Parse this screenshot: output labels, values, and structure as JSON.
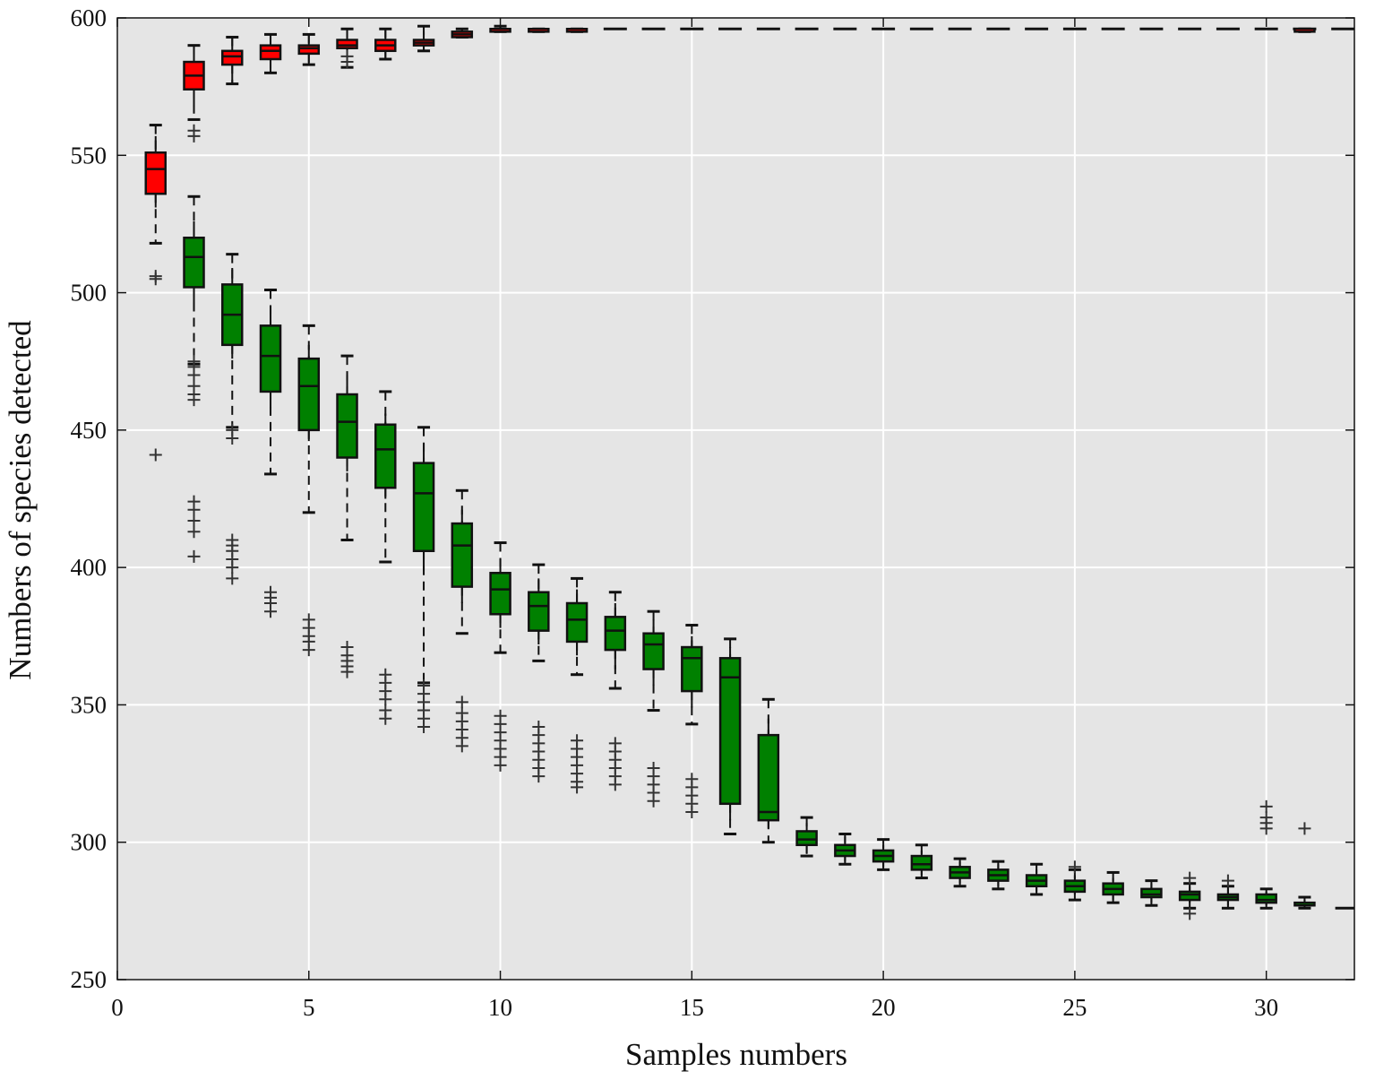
{
  "chart_data": {
    "type": "box",
    "title": "",
    "xlabel": "Samples numbers",
    "ylabel": "Numbers of species detected",
    "xlim": [
      0,
      32.3
    ],
    "ylim": [
      250,
      600
    ],
    "xticks": [
      0,
      5,
      10,
      15,
      20,
      25,
      30
    ],
    "yticks": [
      250,
      300,
      350,
      400,
      450,
      500,
      550,
      600
    ],
    "grid": true,
    "legend": "none",
    "colors": {
      "background": "#e5e5e5",
      "grid": "#ffffff",
      "upper": "#ff0000",
      "lower": "#008000",
      "stroke": "#111111",
      "outlier": "#333333"
    },
    "upper_series": {
      "color": "#ff0000",
      "boxes": [
        {
          "x": 1,
          "whislo": 531,
          "q1": 536,
          "med": 545,
          "q3": 551,
          "whishi": 557,
          "caps": [
            518,
            561
          ],
          "fliers": [
            505,
            506,
            441
          ]
        },
        {
          "x": 2,
          "whislo": 568,
          "q1": 574,
          "med": 579,
          "q3": 584,
          "whishi": 590,
          "caps": [
            563,
            590
          ],
          "fliers": [
            559,
            557
          ]
        },
        {
          "x": 3,
          "whislo": 576,
          "q1": 583,
          "med": 586,
          "q3": 588,
          "whishi": 593,
          "caps": [
            576,
            593
          ],
          "fliers": []
        },
        {
          "x": 4,
          "whislo": 580,
          "q1": 585,
          "med": 588,
          "q3": 590,
          "whishi": 594,
          "caps": [
            580,
            594
          ],
          "fliers": []
        },
        {
          "x": 5,
          "whislo": 583,
          "q1": 587,
          "med": 589,
          "q3": 590,
          "whishi": 594,
          "caps": [
            583,
            594
          ],
          "fliers": []
        },
        {
          "x": 6,
          "whislo": 582,
          "q1": 589,
          "med": 590,
          "q3": 592,
          "whishi": 596,
          "caps": [
            582,
            596
          ],
          "fliers": [
            584,
            586
          ]
        },
        {
          "x": 7,
          "whislo": 585,
          "q1": 588,
          "med": 590,
          "q3": 592,
          "whishi": 596,
          "caps": [
            585,
            596
          ],
          "fliers": []
        },
        {
          "x": 8,
          "whislo": 588,
          "q1": 590,
          "med": 591,
          "q3": 592,
          "whishi": 595,
          "caps": [
            588,
            597
          ],
          "fliers": []
        },
        {
          "x": 9,
          "whislo": 593,
          "q1": 593,
          "med": 594,
          "q3": 595,
          "whishi": 596,
          "caps": [
            593,
            596
          ],
          "fliers": []
        },
        {
          "x": 10,
          "whislo": 595,
          "q1": 595,
          "med": 596,
          "q3": 596,
          "whishi": 597,
          "caps": [
            595,
            597
          ],
          "fliers": []
        },
        {
          "x": 11,
          "whislo": 595,
          "q1": 595,
          "med": 596,
          "q3": 596,
          "whishi": 596,
          "caps": [
            595,
            596
          ],
          "fliers": []
        },
        {
          "x": 12,
          "whislo": 595,
          "q1": 595,
          "med": 596,
          "q3": 596,
          "whishi": 596,
          "caps": [
            595,
            596
          ],
          "fliers": []
        },
        {
          "x": 31,
          "whislo": 595,
          "q1": 595,
          "med": 596,
          "q3": 596,
          "whishi": 596,
          "caps": [
            595,
            596
          ],
          "fliers": []
        }
      ],
      "flat_dashes": {
        "xfrom": 13,
        "xto": 32,
        "value": 596
      }
    },
    "lower_series": {
      "color": "#008000",
      "boxes": [
        {
          "x": 2,
          "whislo": 494,
          "q1": 502,
          "med": 513,
          "q3": 520,
          "whishi": 526,
          "caps": [
            474,
            535
          ],
          "fliers": [
            475,
            473,
            470,
            466,
            463,
            461,
            424,
            421,
            417,
            413,
            404
          ]
        },
        {
          "x": 3,
          "whislo": 476,
          "q1": 481,
          "med": 492,
          "q3": 503,
          "whishi": 509,
          "caps": [
            451,
            514
          ],
          "fliers": [
            447,
            450,
            410,
            408,
            406,
            403,
            400,
            396
          ]
        },
        {
          "x": 4,
          "whislo": 458,
          "q1": 464,
          "med": 477,
          "q3": 488,
          "whishi": 494,
          "caps": [
            434,
            501
          ],
          "fliers": [
            391,
            389,
            387,
            384
          ]
        },
        {
          "x": 5,
          "whislo": 446,
          "q1": 450,
          "med": 466,
          "q3": 476,
          "whishi": 481,
          "caps": [
            420,
            488
          ],
          "fliers": [
            381,
            378,
            375,
            373,
            370
          ]
        },
        {
          "x": 6,
          "whislo": 435,
          "q1": 440,
          "med": 453,
          "q3": 463,
          "whishi": 470,
          "caps": [
            410,
            477
          ],
          "fliers": [
            371,
            368,
            366,
            364,
            362
          ]
        },
        {
          "x": 7,
          "whislo": 425,
          "q1": 429,
          "med": 443,
          "q3": 452,
          "whishi": 456,
          "caps": [
            402,
            464
          ],
          "fliers": [
            361,
            358,
            355,
            352,
            348,
            345
          ]
        },
        {
          "x": 8,
          "whislo": 399,
          "q1": 406,
          "med": 427,
          "q3": 438,
          "whishi": 445,
          "caps": [
            358,
            451
          ],
          "fliers": [
            357,
            354,
            351,
            348,
            345,
            342
          ]
        },
        {
          "x": 9,
          "whislo": 387,
          "q1": 393,
          "med": 408,
          "q3": 416,
          "whishi": 421,
          "caps": [
            376,
            428
          ],
          "fliers": [
            351,
            347,
            344,
            341,
            338,
            335
          ]
        },
        {
          "x": 10,
          "whislo": 378,
          "q1": 383,
          "med": 392,
          "q3": 398,
          "whishi": 403,
          "caps": [
            369,
            409
          ],
          "fliers": [
            346,
            343,
            340,
            337,
            334,
            331,
            328
          ]
        },
        {
          "x": 11,
          "whislo": 372,
          "q1": 377,
          "med": 386,
          "q3": 391,
          "whishi": 396,
          "caps": [
            366,
            401
          ],
          "fliers": [
            342,
            339,
            336,
            333,
            330,
            327,
            324
          ]
        },
        {
          "x": 12,
          "whislo": 368,
          "q1": 373,
          "med": 381,
          "q3": 387,
          "whishi": 392,
          "caps": [
            361,
            396
          ],
          "fliers": [
            337,
            334,
            331,
            328,
            325,
            322,
            320
          ]
        },
        {
          "x": 13,
          "whislo": 363,
          "q1": 370,
          "med": 377,
          "q3": 382,
          "whishi": 387,
          "caps": [
            356,
            391
          ],
          "fliers": [
            336,
            333,
            330,
            327,
            324,
            321
          ]
        },
        {
          "x": 14,
          "whislo": 357,
          "q1": 363,
          "med": 372,
          "q3": 376,
          "whishi": 381,
          "caps": [
            348,
            384
          ],
          "fliers": [
            327,
            324,
            321,
            318,
            315
          ]
        },
        {
          "x": 15,
          "whislo": 349,
          "q1": 355,
          "med": 367,
          "q3": 371,
          "whishi": 375,
          "caps": [
            343,
            379
          ],
          "fliers": [
            323,
            320,
            317,
            314,
            311
          ]
        },
        {
          "x": 16,
          "whislo": 308,
          "q1": 314,
          "med": 360,
          "q3": 367,
          "whishi": 371,
          "caps": [
            303,
            374
          ],
          "fliers": []
        },
        {
          "x": 17,
          "whislo": 305,
          "q1": 308,
          "med": 311,
          "q3": 339,
          "whishi": 345,
          "caps": [
            300,
            352
          ],
          "fliers": []
        },
        {
          "x": 18,
          "whislo": 296,
          "q1": 299,
          "med": 301,
          "q3": 304,
          "whishi": 307,
          "caps": [
            295,
            309
          ],
          "fliers": []
        },
        {
          "x": 19,
          "whislo": 293,
          "q1": 295,
          "med": 297,
          "q3": 299,
          "whishi": 302,
          "caps": [
            292,
            303
          ],
          "fliers": []
        },
        {
          "x": 20,
          "whislo": 291,
          "q1": 293,
          "med": 295,
          "q3": 297,
          "whishi": 299,
          "caps": [
            290,
            301
          ],
          "fliers": []
        },
        {
          "x": 21,
          "whislo": 288,
          "q1": 290,
          "med": 292,
          "q3": 295,
          "whishi": 297,
          "caps": [
            287,
            299
          ],
          "fliers": []
        },
        {
          "x": 22,
          "whislo": 285,
          "q1": 287,
          "med": 289,
          "q3": 291,
          "whishi": 293,
          "caps": [
            284,
            294
          ],
          "fliers": []
        },
        {
          "x": 23,
          "whislo": 284,
          "q1": 286,
          "med": 288,
          "q3": 290,
          "whishi": 292,
          "caps": [
            283,
            293
          ],
          "fliers": []
        },
        {
          "x": 24,
          "whislo": 282,
          "q1": 284,
          "med": 286,
          "q3": 288,
          "whishi": 290,
          "caps": [
            281,
            292
          ],
          "fliers": []
        },
        {
          "x": 25,
          "whislo": 281,
          "q1": 282,
          "med": 284,
          "q3": 286,
          "whishi": 288,
          "caps": [
            279,
            290
          ],
          "fliers": [
            291
          ]
        },
        {
          "x": 26,
          "whislo": 279,
          "q1": 281,
          "med": 283,
          "q3": 285,
          "whishi": 287,
          "caps": [
            278,
            289
          ],
          "fliers": []
        },
        {
          "x": 27,
          "whislo": 278,
          "q1": 280,
          "med": 281,
          "q3": 283,
          "whishi": 285,
          "caps": [
            277,
            286
          ],
          "fliers": []
        },
        {
          "x": 28,
          "whislo": 278,
          "q1": 279,
          "med": 281,
          "q3": 282,
          "whishi": 284,
          "caps": [
            276,
            285
          ],
          "fliers": [
            274,
            287
          ]
        },
        {
          "x": 29,
          "whislo": 277,
          "q1": 279,
          "med": 280,
          "q3": 281,
          "whishi": 283,
          "caps": [
            276,
            284
          ],
          "fliers": [
            286
          ]
        },
        {
          "x": 30,
          "whislo": 277,
          "q1": 278,
          "med": 279,
          "q3": 281,
          "whishi": 282,
          "caps": [
            276,
            283
          ],
          "fliers": [
            313,
            309,
            307,
            305
          ]
        },
        {
          "x": 31,
          "whislo": 277,
          "q1": 277,
          "med": 277,
          "q3": 278,
          "whishi": 279,
          "caps": [
            276,
            280
          ],
          "fliers": [
            305
          ]
        }
      ],
      "flat_dash": {
        "xfrom": 31.8,
        "xto": 32.3,
        "value": 276
      }
    }
  }
}
